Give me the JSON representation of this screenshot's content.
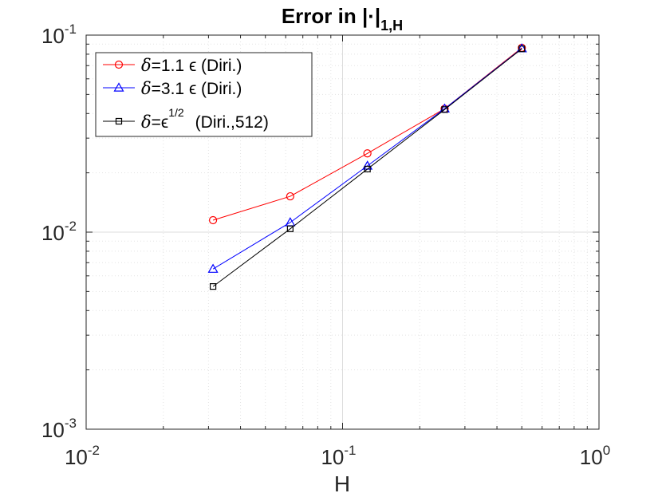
{
  "chart_data": {
    "type": "line",
    "title": "Error in |·|",
    "title_subscript": "1,H",
    "xlabel": "H",
    "ylabel": "",
    "x_scale": "log",
    "y_scale": "log",
    "xlim": [
      0.01,
      1
    ],
    "ylim": [
      0.001,
      0.1
    ],
    "grid": true,
    "minor_grid": true,
    "legend_position": "top-left",
    "x_ticks": [
      {
        "base": "10",
        "exp": "-2"
      },
      {
        "base": "10",
        "exp": "-1"
      },
      {
        "base": "10",
        "exp": "0"
      }
    ],
    "y_ticks": [
      {
        "base": "10",
        "exp": "-3"
      },
      {
        "base": "10",
        "exp": "-2"
      },
      {
        "base": "10",
        "exp": "-1"
      }
    ],
    "series": [
      {
        "label_symbol": "δ",
        "label_main": "=1.1 ϵ (Diri.)",
        "label_sup": "",
        "label_tail": "",
        "color": "#ff0000",
        "marker": "circle",
        "x": [
          0.03125,
          0.0625,
          0.125,
          0.25,
          0.5
        ],
        "y": [
          0.0115,
          0.0152,
          0.0251,
          0.0423,
          0.0862
        ]
      },
      {
        "label_symbol": "δ",
        "label_main": "=3.1 ϵ (Diri.)",
        "label_sup": "",
        "label_tail": "",
        "color": "#0000ff",
        "marker": "triangle",
        "x": [
          0.03125,
          0.0625,
          0.125,
          0.25,
          0.5
        ],
        "y": [
          0.0065,
          0.0112,
          0.0217,
          0.0423,
          0.0855
        ]
      },
      {
        "label_symbol": "δ",
        "label_main": "=ϵ",
        "label_sup": "1/2",
        "label_tail": "(Diri.,512)",
        "color": "#000000",
        "marker": "square",
        "x": [
          0.03125,
          0.0625,
          0.125,
          0.25,
          0.5
        ],
        "y": [
          0.0053,
          0.0104,
          0.0209,
          0.0419,
          0.0852
        ]
      }
    ]
  }
}
